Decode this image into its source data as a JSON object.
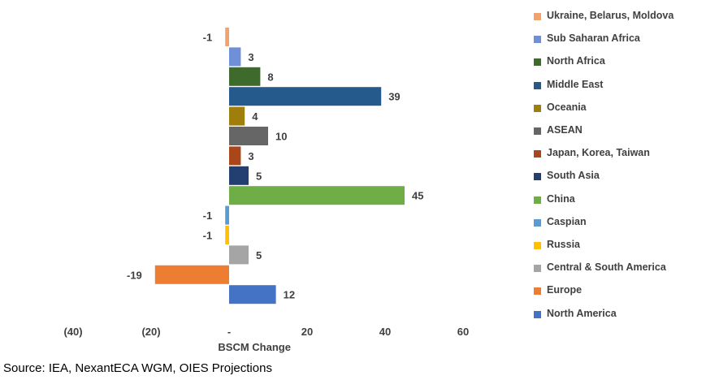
{
  "chart_data": {
    "type": "bar",
    "orientation": "horizontal",
    "xlabel": "BSCM Change",
    "xlim": [
      -40,
      60
    ],
    "x_ticks": [
      -40,
      -20,
      0,
      20,
      40,
      60
    ],
    "x_tick_labels": [
      "(40)",
      "(20)",
      "-",
      "20",
      "40",
      "60"
    ],
    "grid": false,
    "legend_position": "right",
    "categories": [
      {
        "name": "Ukraine, Belarus, Moldova",
        "value": -1,
        "label": "-1",
        "color": "#f4a26b"
      },
      {
        "name": "Sub Saharan Africa",
        "value": 3,
        "label": "3",
        "color": "#6f8fd6"
      },
      {
        "name": "North Africa",
        "value": 8,
        "label": "8",
        "color": "#3e6b2c"
      },
      {
        "name": "Middle East",
        "value": 39,
        "label": "39",
        "color": "#245b8c"
      },
      {
        "name": "Oceania",
        "value": 4,
        "label": "4",
        "color": "#a07e0c"
      },
      {
        "name": "ASEAN",
        "value": 10,
        "label": "10",
        "color": "#666666"
      },
      {
        "name": "Japan, Korea, Taiwan",
        "value": 3,
        "label": "3",
        "color": "#a9471a"
      },
      {
        "name": "South Asia",
        "value": 5,
        "label": "5",
        "color": "#233e70"
      },
      {
        "name": "China",
        "value": 45,
        "label": "45",
        "color": "#6fae47"
      },
      {
        "name": "Caspian",
        "value": -1,
        "label": "-1",
        "color": "#5b9bd5"
      },
      {
        "name": "Russia",
        "value": -1,
        "label": "-1",
        "color": "#ffc000"
      },
      {
        "name": "Central & South America",
        "value": 5,
        "label": "5",
        "color": "#a5a5a5"
      },
      {
        "name": "Europe",
        "value": -19,
        "label": "-19",
        "color": "#ed7d31"
      },
      {
        "name": "North America",
        "value": 12,
        "label": "12",
        "color": "#4472c4"
      }
    ]
  },
  "source": "Source: IEA, NexantECA WGM, OIES Projections"
}
